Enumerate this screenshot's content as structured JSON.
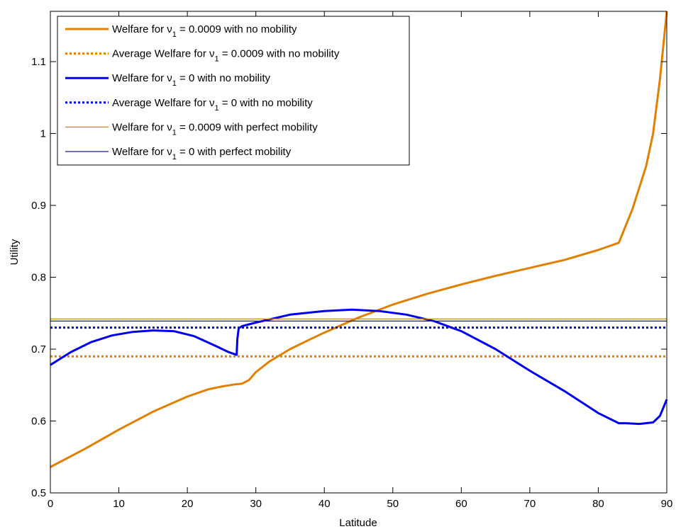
{
  "chart_data": {
    "type": "line",
    "title": "",
    "xlabel": "Latitude",
    "ylabel": "Utility",
    "xlim": [
      0,
      90
    ],
    "ylim": [
      0.5,
      1.17
    ],
    "xticks": [
      0,
      10,
      20,
      30,
      40,
      50,
      60,
      70,
      80,
      90
    ],
    "yticks": [
      0.5,
      0.6,
      0.7,
      0.8,
      0.9,
      1,
      1.1
    ],
    "xtick_labels": [
      "0",
      "10",
      "20",
      "30",
      "40",
      "50",
      "60",
      "70",
      "80",
      "90"
    ],
    "ytick_labels": [
      "0.5",
      "0.6",
      "0.7",
      "0.8",
      "0.9",
      "1",
      "1.1"
    ],
    "grid": false,
    "legend_position": "top-left",
    "colors": {
      "orange": "#e08000",
      "blue": "#0000ee",
      "thin_orange": "#cc8b1f",
      "thin_blue": "#1a1aa0"
    },
    "series": [
      {
        "name": "Welfare for ν1 = 0.0009 with no mobility",
        "legend_prefix": "Welfare for ν",
        "legend_sub": "1",
        "legend_suffix": " = 0.0009 with no mobility",
        "color": "#e08000",
        "style": "solid",
        "weight": "thick",
        "x": [
          0,
          5,
          10,
          15,
          20,
          23,
          25,
          27,
          28,
          29,
          30,
          32,
          35,
          38,
          40,
          45,
          50,
          55,
          60,
          65,
          70,
          75,
          80,
          83,
          85,
          87,
          88,
          89,
          90
        ],
        "y": [
          0.536,
          0.561,
          0.588,
          0.613,
          0.634,
          0.644,
          0.648,
          0.651,
          0.652,
          0.657,
          0.668,
          0.683,
          0.7,
          0.714,
          0.723,
          0.744,
          0.762,
          0.777,
          0.79,
          0.802,
          0.813,
          0.824,
          0.838,
          0.848,
          0.895,
          0.955,
          1.0,
          1.075,
          1.17
        ]
      },
      {
        "name": "Average Welfare for ν1 = 0.0009 with no mobility",
        "legend_prefix": "Average Welfare for ν",
        "legend_sub": "1",
        "legend_suffix": " = 0.0009 with no mobility",
        "color": "#e08000",
        "style": "dotted",
        "weight": "thick",
        "x": [
          0,
          90
        ],
        "y": [
          0.69,
          0.69
        ]
      },
      {
        "name": "Welfare for ν1 = 0 with no mobility",
        "legend_prefix": "Welfare for ν",
        "legend_sub": "1",
        "legend_suffix": " = 0 with no mobility",
        "color": "#0000ee",
        "style": "solid",
        "weight": "thick",
        "x": [
          0,
          3,
          6,
          9,
          12,
          15,
          18,
          21,
          24,
          26,
          27.2,
          27.3,
          27.5,
          28,
          30,
          35,
          40,
          44,
          48,
          52,
          56,
          60,
          65,
          70,
          75,
          80,
          83,
          84,
          86,
          88,
          89,
          90
        ],
        "y": [
          0.678,
          0.696,
          0.71,
          0.719,
          0.724,
          0.726,
          0.725,
          0.718,
          0.705,
          0.696,
          0.692,
          0.714,
          0.729,
          0.732,
          0.737,
          0.748,
          0.753,
          0.755,
          0.753,
          0.748,
          0.739,
          0.725,
          0.7,
          0.67,
          0.642,
          0.611,
          0.597,
          0.597,
          0.596,
          0.598,
          0.607,
          0.63
        ]
      },
      {
        "name": "Average Welfare for ν1 = 0 with no mobility",
        "legend_prefix": "Average Welfare for ν",
        "legend_sub": "1",
        "legend_suffix": " = 0 with no mobility",
        "color": "#0000ee",
        "style": "dotted",
        "weight": "thick",
        "x": [
          0,
          90
        ],
        "y": [
          0.73,
          0.73
        ]
      },
      {
        "name": "Welfare for ν1 = 0.0009 with perfect mobility",
        "legend_prefix": "Welfare for ν",
        "legend_sub": "1",
        "legend_suffix": " = 0.0009 with perfect mobility",
        "color": "#cc8b1f",
        "style": "solid",
        "weight": "thin",
        "x": [
          0,
          90
        ],
        "y": [
          0.742,
          0.742
        ]
      },
      {
        "name": "Welfare for ν1 = 0 with perfect mobility",
        "legend_prefix": "Welfare for ν",
        "legend_sub": "1",
        "legend_suffix": " = 0 with perfect mobility",
        "color": "#1a1aa0",
        "style": "solid",
        "weight": "thin",
        "x": [
          0,
          90
        ],
        "y": [
          0.739,
          0.739
        ]
      }
    ]
  }
}
